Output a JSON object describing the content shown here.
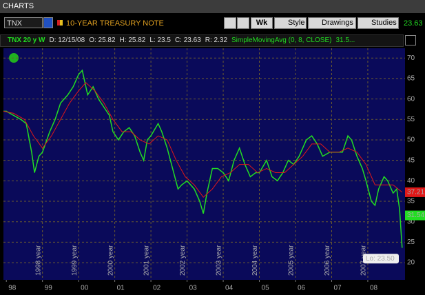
{
  "window": {
    "title": "CHARTS"
  },
  "toolbar": {
    "symbol": "TNX",
    "description": "10-YEAR TREASURY NOTE",
    "aggregation": "Wk",
    "style": "Style",
    "drawings": "Drawings",
    "studies": "Studies",
    "last": "23.63"
  },
  "info": {
    "date": "D: 12/15/08",
    "open": "O: 25.82",
    "high": "H: 25.82",
    "low": "L: 23.5",
    "close": "C: 23.63",
    "range": "R: 2.32",
    "study_value": "31.5..."
  },
  "chart_data": {
    "type": "line",
    "xlim": [
      1997.92,
      2009.03
    ],
    "ylim": [
      15.8,
      72.4
    ],
    "yticks": [
      20,
      25,
      30,
      35,
      40,
      45,
      50,
      55,
      60,
      65,
      70
    ],
    "grid": true,
    "xticks": [
      {
        "value": 1998,
        "label": "98"
      },
      {
        "value": 1999,
        "label": "99"
      },
      {
        "value": 2000,
        "label": "00"
      },
      {
        "value": 2001,
        "label": "01"
      },
      {
        "value": 2002,
        "label": "02"
      },
      {
        "value": 2003,
        "label": "03"
      },
      {
        "value": 2004,
        "label": "04"
      },
      {
        "value": 2005,
        "label": "05"
      },
      {
        "value": 2006,
        "label": "06"
      },
      {
        "value": 2007,
        "label": "07"
      },
      {
        "value": 2008,
        "label": "08"
      }
    ],
    "period_lines": [
      {
        "value": 1999,
        "label": "1998 year"
      },
      {
        "value": 2000,
        "label": "1999 year"
      },
      {
        "value": 2001,
        "label": "2000 year"
      },
      {
        "value": 2002,
        "label": "2001 year"
      },
      {
        "value": 2003,
        "label": "2002 year"
      },
      {
        "value": 2004,
        "label": "2003 year"
      },
      {
        "value": 2005,
        "label": "2004 year"
      },
      {
        "value": 2006,
        "label": "2005 year"
      },
      {
        "value": 2007,
        "label": "2006 year"
      },
      {
        "value": 2008,
        "label": "2007 year"
      }
    ],
    "series": [
      {
        "name": "TNX 20 y W",
        "color": "#22dd22",
        "x": [
          1997.92,
          1998.0,
          1998.2,
          1998.4,
          1998.55,
          1998.7,
          1998.78,
          1998.9,
          1999.0,
          1999.2,
          1999.35,
          1999.5,
          1999.7,
          1999.85,
          2000.0,
          2000.1,
          2000.25,
          2000.4,
          2000.55,
          2000.7,
          2000.85,
          2000.95,
          2001.1,
          2001.25,
          2001.4,
          2001.55,
          2001.7,
          2001.8,
          2001.9,
          2002.0,
          2002.2,
          2002.3,
          2002.45,
          2002.6,
          2002.75,
          2002.85,
          2003.0,
          2003.2,
          2003.35,
          2003.45,
          2003.55,
          2003.7,
          2003.85,
          2004.0,
          2004.15,
          2004.3,
          2004.45,
          2004.6,
          2004.75,
          2004.9,
          2005.0,
          2005.2,
          2005.35,
          2005.5,
          2005.65,
          2005.8,
          2005.95,
          2006.1,
          2006.3,
          2006.45,
          2006.6,
          2006.75,
          2006.95,
          2007.1,
          2007.3,
          2007.45,
          2007.55,
          2007.7,
          2007.85,
          2007.95,
          2008.1,
          2008.2,
          2008.3,
          2008.45,
          2008.55,
          2008.7,
          2008.8,
          2008.88,
          2008.95
        ],
        "values": [
          57,
          57,
          56,
          55,
          54,
          47,
          42,
          46,
          47,
          52,
          55,
          59,
          61,
          63,
          66,
          67,
          61,
          63,
          60,
          58,
          56,
          52,
          50,
          52,
          53,
          51,
          47,
          45,
          50,
          51,
          54,
          52,
          48,
          43,
          38,
          39,
          40,
          38,
          35,
          32,
          37,
          43,
          43,
          42,
          40,
          45,
          48,
          44,
          41,
          42,
          42,
          45,
          41,
          40,
          42,
          45,
          44,
          46,
          50,
          51,
          49,
          46,
          47,
          47,
          47,
          51,
          50,
          46,
          43,
          40,
          35,
          34,
          38,
          41,
          40,
          37,
          38,
          33,
          23.63
        ]
      },
      {
        "name": "SimpleMovingAvg (0, 8, CLOSE)",
        "color": "#e01818",
        "x": [
          1997.92,
          1998.2,
          1998.5,
          1998.75,
          1999.0,
          1999.25,
          1999.5,
          1999.75,
          2000.0,
          2000.2,
          2000.45,
          2000.7,
          2000.95,
          2001.2,
          2001.45,
          2001.7,
          2001.95,
          2002.2,
          2002.45,
          2002.7,
          2002.95,
          2003.2,
          2003.45,
          2003.7,
          2003.95,
          2004.2,
          2004.45,
          2004.7,
          2004.95,
          2005.2,
          2005.45,
          2005.7,
          2005.95,
          2006.2,
          2006.45,
          2006.7,
          2006.95,
          2007.2,
          2007.45,
          2007.7,
          2007.95,
          2008.2,
          2008.45,
          2008.7,
          2008.95
        ],
        "values": [
          57,
          56.5,
          55,
          51,
          48,
          51,
          55,
          59,
          62,
          64,
          62,
          59,
          55,
          52,
          52,
          50,
          49,
          51,
          50,
          45,
          41,
          39,
          36,
          38,
          41,
          42,
          44,
          44,
          42,
          43,
          42,
          42,
          44,
          46,
          49,
          49,
          47,
          47,
          48,
          47,
          44,
          39,
          39,
          39,
          37.21
        ]
      }
    ],
    "markers": [
      {
        "value": 37.21,
        "color": "#e01818"
      },
      {
        "value": 31.54,
        "color": "#22dd22"
      }
    ],
    "low_label": {
      "value": 23.5,
      "label": "Lo: 23.50"
    }
  }
}
